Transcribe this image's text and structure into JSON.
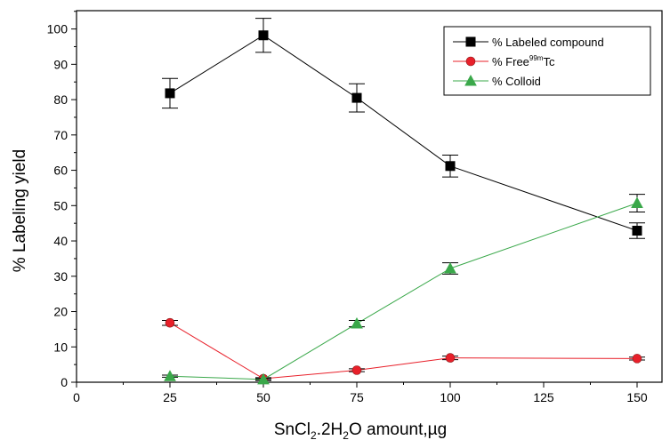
{
  "chart_data": {
    "type": "line",
    "xlabel": {
      "main": "SnCl",
      "sub1": "2",
      "mid": ".2H",
      "sub2": "2",
      "end": "O amount,µg"
    },
    "ylabel": "% Labeling yield",
    "xlim": [
      0,
      160
    ],
    "ylim": [
      0,
      105
    ],
    "x_ticks": [
      0,
      25,
      50,
      75,
      100,
      125,
      150
    ],
    "y_ticks": [
      0,
      10,
      20,
      30,
      40,
      50,
      60,
      70,
      80,
      90,
      100
    ],
    "grid": false,
    "legend_position": "top-right",
    "series": [
      {
        "name": "% Labeled compound",
        "legend": {
          "pre": "% Labeled compound",
          "sup": "",
          "post": ""
        },
        "marker": "square",
        "color": "#000000",
        "x": [
          25,
          50,
          75,
          100,
          150
        ],
        "values": [
          81.8,
          98.2,
          80.5,
          61.2,
          42.9
        ],
        "errors": [
          4.2,
          4.8,
          4.0,
          3.1,
          2.2
        ]
      },
      {
        "name": "% Free99mTc",
        "legend": {
          "pre": "% Free",
          "sup": "99m",
          "post": "Tc"
        },
        "marker": "circle",
        "color": "#e8202a",
        "x": [
          25,
          50,
          75,
          100,
          150
        ],
        "values": [
          16.8,
          1.0,
          3.4,
          6.9,
          6.7
        ],
        "errors": [
          0.7,
          0.3,
          0.4,
          0.5,
          0.4
        ]
      },
      {
        "name": "% Colloid",
        "legend": {
          "pre": "% Colloid",
          "sup": "",
          "post": ""
        },
        "marker": "triangle",
        "color": "#3aa84a",
        "x": [
          25,
          50,
          75,
          100,
          150
        ],
        "values": [
          1.7,
          0.8,
          16.6,
          32.2,
          50.7
        ],
        "errors": [
          0.3,
          0.3,
          0.9,
          1.6,
          2.5
        ]
      }
    ]
  }
}
